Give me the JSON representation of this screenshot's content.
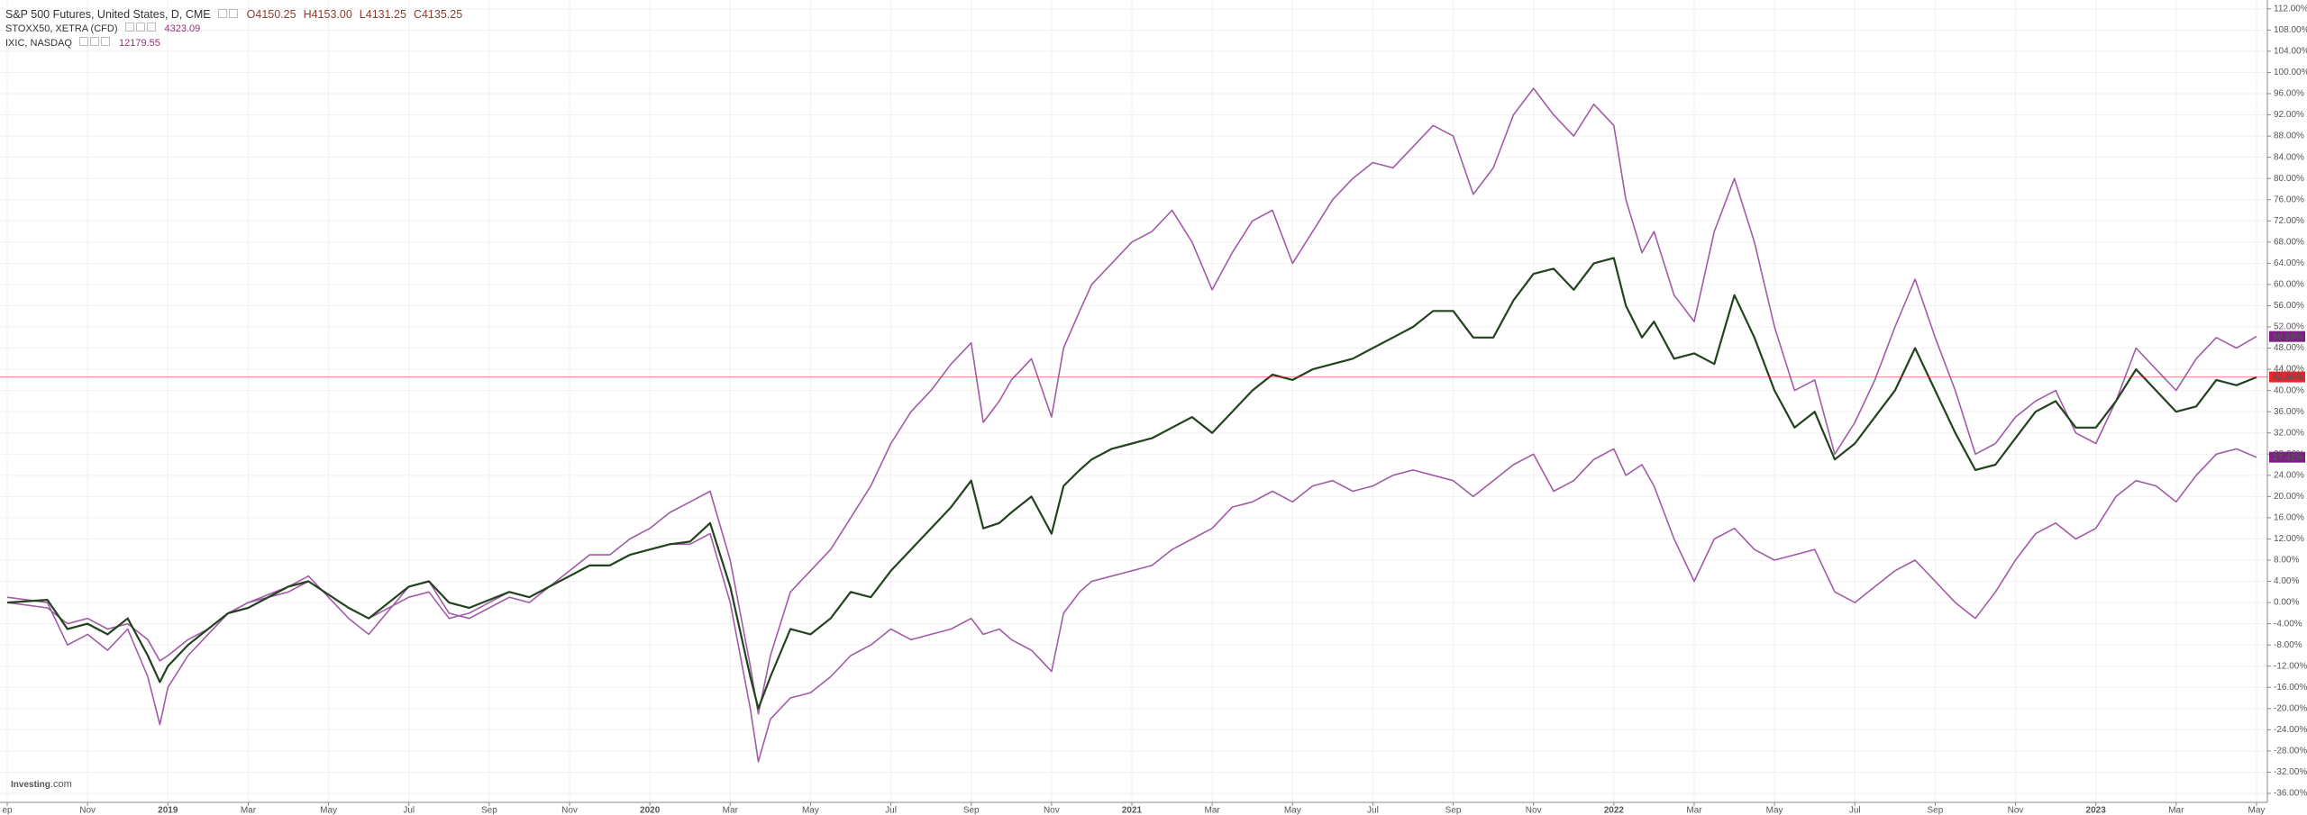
{
  "chart_data": {
    "type": "line",
    "title": "S&P 500 Futures, United States, D, CME",
    "xlim": [
      -0.18,
      56.27
    ],
    "ylim": [
      -37.7,
      113.67
    ],
    "grid": true,
    "y_axis_side": "right",
    "xticks": [
      {
        "value": 0,
        "label": "ep"
      },
      {
        "value": 2,
        "label": "Nov"
      },
      {
        "value": 4,
        "label": "2019"
      },
      {
        "value": 6,
        "label": "Mar"
      },
      {
        "value": 8,
        "label": "May"
      },
      {
        "value": 10,
        "label": "Jul"
      },
      {
        "value": 12,
        "label": "Sep"
      },
      {
        "value": 14,
        "label": "Nov"
      },
      {
        "value": 16,
        "label": "2020"
      },
      {
        "value": 18,
        "label": "Mar"
      },
      {
        "value": 20,
        "label": "May"
      },
      {
        "value": 22,
        "label": "Jul"
      },
      {
        "value": 24,
        "label": "Sep"
      },
      {
        "value": 26,
        "label": "Nov"
      },
      {
        "value": 28,
        "label": "2021"
      },
      {
        "value": 30,
        "label": "Mar"
      },
      {
        "value": 32,
        "label": "May"
      },
      {
        "value": 34,
        "label": "Jul"
      },
      {
        "value": 36,
        "label": "Sep"
      },
      {
        "value": 38,
        "label": "Nov"
      },
      {
        "value": 40,
        "label": "2022"
      },
      {
        "value": 42,
        "label": "Mar"
      },
      {
        "value": 44,
        "label": "May"
      },
      {
        "value": 46,
        "label": "Jul"
      },
      {
        "value": 48,
        "label": "Sep"
      },
      {
        "value": 50,
        "label": "Nov"
      },
      {
        "value": 52,
        "label": "2023"
      },
      {
        "value": 54,
        "label": "Mar"
      },
      {
        "value": 56,
        "label": "May"
      }
    ],
    "yticks": [
      {
        "value": 112,
        "label": "112.00%"
      },
      {
        "value": 108,
        "label": "108.00%"
      },
      {
        "value": 104,
        "label": "104.00%"
      },
      {
        "value": 100,
        "label": "100.00%"
      },
      {
        "value": 96,
        "label": "96.00%"
      },
      {
        "value": 92,
        "label": "92.00%"
      },
      {
        "value": 88,
        "label": "88.00%"
      },
      {
        "value": 84,
        "label": "84.00%"
      },
      {
        "value": 80,
        "label": "80.00%"
      },
      {
        "value": 76,
        "label": "76.00%"
      },
      {
        "value": 72,
        "label": "72.00%"
      },
      {
        "value": 68,
        "label": "68.00%"
      },
      {
        "value": 64,
        "label": "64.00%"
      },
      {
        "value": 60,
        "label": "60.00%"
      },
      {
        "value": 56,
        "label": "56.00%"
      },
      {
        "value": 52,
        "label": "52.00%"
      },
      {
        "value": 48,
        "label": "48.00%"
      },
      {
        "value": 44,
        "label": "44.00%"
      },
      {
        "value": 40,
        "label": "40.00%"
      },
      {
        "value": 36,
        "label": "36.00%"
      },
      {
        "value": 32,
        "label": "32.00%"
      },
      {
        "value": 28,
        "label": "28.00%"
      },
      {
        "value": 24,
        "label": "24.00%"
      },
      {
        "value": 20,
        "label": "20.00%"
      },
      {
        "value": 16,
        "label": "16.00%"
      },
      {
        "value": 12,
        "label": "12.00%"
      },
      {
        "value": 8,
        "label": "8.00%"
      },
      {
        "value": 4,
        "label": "4.00%"
      },
      {
        "value": 0,
        "label": "0.00%"
      },
      {
        "value": -4,
        "label": "-4.00%"
      },
      {
        "value": -8,
        "label": "-8.00%"
      },
      {
        "value": -12,
        "label": "-12.00%"
      },
      {
        "value": -16,
        "label": "-16.00%"
      },
      {
        "value": -20,
        "label": "-20.00%"
      },
      {
        "value": -24,
        "label": "-24.00%"
      },
      {
        "value": -28,
        "label": "-28.00%"
      },
      {
        "value": -32,
        "label": "-32.00%"
      },
      {
        "value": -36,
        "label": "-36.00%"
      }
    ],
    "x": [
      0,
      1,
      1.5,
      2,
      2.5,
      3,
      3.5,
      3.8,
      4,
      4.5,
      5,
      5.5,
      6,
      7,
      7.5,
      8.5,
      9,
      10,
      10.5,
      11,
      11.5,
      12,
      12.5,
      13,
      13.5,
      14,
      14.5,
      15,
      15.5,
      16,
      16.5,
      17,
      17.5,
      18,
      18.5,
      18.7,
      19,
      19.5,
      20,
      20.5,
      21,
      21.5,
      22,
      22.5,
      23,
      23.5,
      24,
      24.3,
      24.7,
      25,
      25.5,
      26,
      26.3,
      26.7,
      27,
      27.5,
      28,
      28.5,
      29,
      29.5,
      30,
      30.5,
      31,
      31.5,
      32,
      32.5,
      33,
      33.5,
      34,
      34.5,
      35,
      35.5,
      36,
      36.5,
      37,
      37.5,
      38,
      38.5,
      39,
      39.5,
      40,
      40.3,
      40.7,
      41,
      41.5,
      42,
      42.5,
      43,
      43.5,
      44,
      44.5,
      45,
      45.5,
      46,
      46.5,
      47,
      47.5,
      48,
      48.5,
      49,
      49.5,
      50,
      50.5,
      51,
      51.5,
      52,
      52.5,
      53,
      53.5,
      54,
      54.5,
      55,
      55.5,
      56
    ],
    "series": [
      {
        "name": "S&P 500 Futures, United States, D, CME",
        "color": "#23431f",
        "width": 2.2,
        "legend_values": [
          "O4150.25",
          "H4153.00",
          "L4131.25",
          "C4135.25"
        ],
        "legend_color": "#8e3b2f",
        "end_tag": {
          "value": 42.56,
          "label": "42.56%"
        },
        "tag_color": "#e8262c",
        "price_line": true,
        "values": [
          0,
          0.5,
          -5,
          -4,
          -6,
          -3,
          -10,
          -15,
          -12,
          -8,
          -5,
          -2,
          -1,
          3,
          4,
          -1,
          -3,
          3,
          4,
          0,
          -1,
          0.5,
          2,
          1,
          3,
          5,
          7,
          7,
          9,
          10,
          11,
          11.5,
          15,
          3,
          -14,
          -20,
          -14,
          -5,
          -6,
          -3,
          2,
          1,
          6,
          10,
          14,
          18,
          23,
          14,
          15,
          17,
          20,
          13,
          22,
          25,
          27,
          29,
          30,
          31,
          33,
          35,
          32,
          36,
          40,
          43,
          42,
          44,
          45,
          46,
          48,
          50,
          52,
          55,
          55,
          50,
          50,
          57,
          62,
          63,
          59,
          64,
          65,
          56,
          50,
          53,
          46,
          47,
          45,
          58,
          50,
          40,
          33,
          36,
          27,
          30,
          35,
          40,
          48,
          40,
          32,
          25,
          26,
          31,
          36,
          38,
          33,
          33,
          38,
          44,
          40,
          36,
          37,
          42,
          41,
          42.5
        ]
      },
      {
        "name": "STOXX50, XETRA (CFD)",
        "color": "#a25ba6",
        "width": 1.6,
        "legend_values": [
          "4323.09"
        ],
        "legend_color": "#9c2f7a",
        "end_tag": {
          "value": 27.42,
          "label": "27.42%"
        },
        "tag_color": "#7d1f84",
        "values": [
          0,
          -1,
          -4,
          -3,
          -5,
          -4,
          -7,
          -11,
          -10,
          -7,
          -5,
          -2,
          0,
          2,
          4,
          -1,
          -3,
          1,
          2,
          -3,
          -2,
          0,
          2,
          1,
          3,
          5,
          7,
          7,
          9,
          10,
          11,
          11,
          13,
          0,
          -20,
          -30,
          -22,
          -18,
          -17,
          -14,
          -10,
          -8,
          -5,
          -7,
          -6,
          -5,
          -3,
          -6,
          -5,
          -7,
          -9,
          -13,
          -2,
          2,
          4,
          5,
          6,
          7,
          10,
          12,
          14,
          18,
          19,
          21,
          19,
          22,
          23,
          21,
          22,
          24,
          25,
          24,
          23,
          20,
          23,
          26,
          28,
          21,
          23,
          27,
          29,
          24,
          26,
          22,
          12,
          4,
          12,
          14,
          10,
          8,
          9,
          10,
          2,
          0,
          3,
          6,
          8,
          4,
          0,
          -3,
          2,
          8,
          13,
          15,
          12,
          14,
          20,
          23,
          22,
          19,
          24,
          28,
          29,
          27.4
        ]
      },
      {
        "name": "IXIC, NASDAQ",
        "color": "#a25ba6",
        "width": 1.6,
        "legend_values": [
          "12179.55"
        ],
        "legend_color": "#9c2f7a",
        "end_tag": {
          "value": 50.19,
          "label": "50.19%"
        },
        "tag_color": "#7d1f84",
        "values": [
          1,
          0,
          -8,
          -6,
          -9,
          -5,
          -14,
          -23,
          -16,
          -10,
          -6,
          -2,
          0,
          3,
          5,
          -3,
          -6,
          3,
          4,
          -2,
          -3,
          -1,
          1,
          0,
          3,
          6,
          9,
          9,
          12,
          14,
          17,
          19,
          21,
          8,
          -12,
          -21,
          -10,
          2,
          6,
          10,
          16,
          22,
          30,
          36,
          40,
          45,
          49,
          34,
          38,
          42,
          46,
          35,
          48,
          55,
          60,
          64,
          68,
          70,
          74,
          68,
          59,
          66,
          72,
          74,
          64,
          70,
          76,
          80,
          83,
          82,
          86,
          90,
          88,
          77,
          82,
          92,
          97,
          92,
          88,
          94,
          90,
          76,
          66,
          70,
          58,
          53,
          70,
          80,
          68,
          52,
          40,
          42,
          28,
          34,
          42,
          52,
          61,
          50,
          40,
          28,
          30,
          35,
          38,
          40,
          32,
          30,
          38,
          48,
          44,
          40,
          46,
          50,
          48,
          50.2
        ]
      }
    ],
    "logo": {
      "name": "Investing",
      "suffix": ".com"
    }
  }
}
